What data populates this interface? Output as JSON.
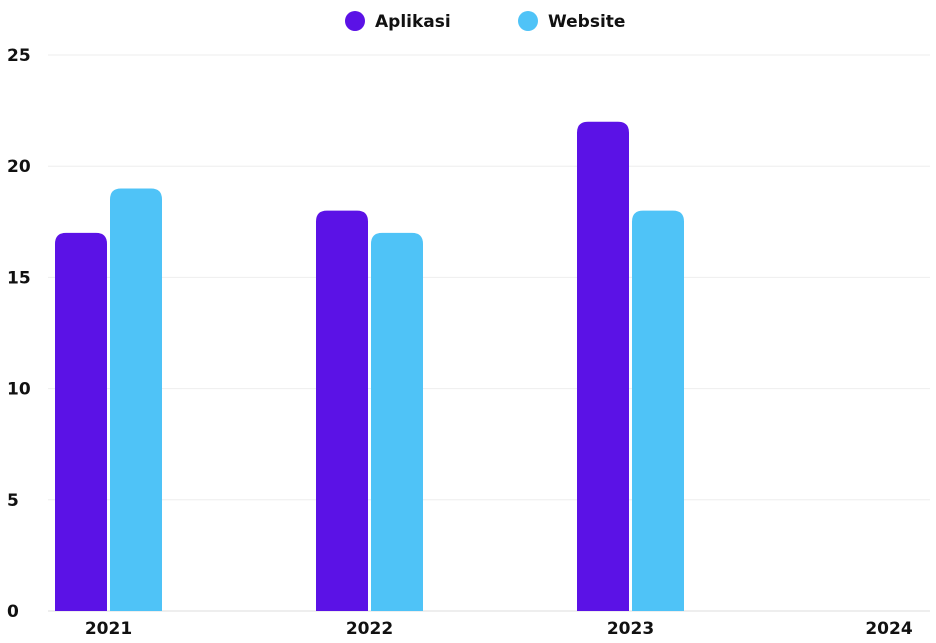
{
  "chart_data": {
    "type": "bar",
    "categories": [
      "2021",
      "2022",
      "2023",
      "2024"
    ],
    "series": [
      {
        "name": "Aplikasi",
        "color": "#5b12e6",
        "values": [
          17,
          18,
          22,
          null
        ]
      },
      {
        "name": "Website",
        "color": "#4fc3f7",
        "values": [
          19,
          17,
          18,
          null
        ]
      }
    ],
    "ylim": [
      0,
      25
    ],
    "yticks": [
      0,
      5,
      10,
      15,
      20,
      25
    ],
    "grid": true,
    "legend_position": "top-center"
  }
}
